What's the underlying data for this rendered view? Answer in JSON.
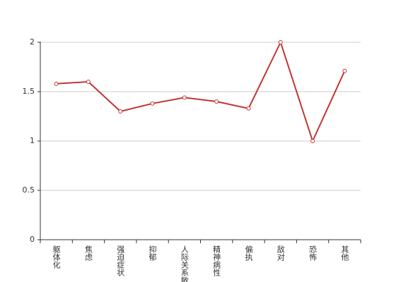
{
  "chart_data": {
    "type": "line",
    "categories": [
      "躯体化",
      "焦虑",
      "强迫症状",
      "抑郁",
      "人际关系敏感",
      "精神病性",
      "偏执",
      "敌对",
      "恐怖",
      "其他"
    ],
    "series": [
      {
        "color": "#c23531",
        "values": [
          1.58,
          1.6,
          1.3,
          1.38,
          1.44,
          1.4,
          1.33,
          2,
          1,
          1.71
        ]
      }
    ],
    "ylim": [
      0,
      2
    ],
    "yticks": [
      0,
      0.5,
      1,
      1.5,
      2
    ],
    "grid": true
  }
}
